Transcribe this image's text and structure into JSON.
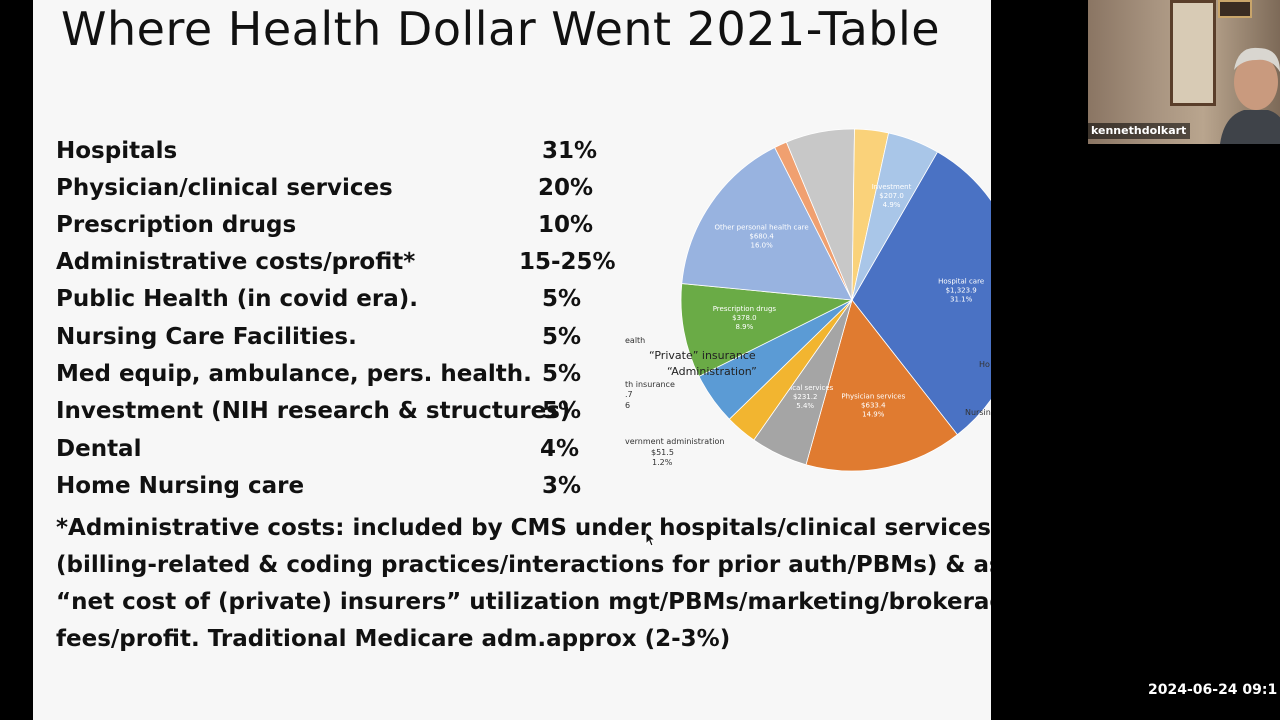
{
  "slide": {
    "title": "Where Health Dollar Went 2021-Table",
    "rows": [
      {
        "label": "Hospitals",
        "value": "31%"
      },
      {
        "label": "Physician/clinical services",
        "value": "20%"
      },
      {
        "label": "Prescription drugs",
        "value": "10%"
      },
      {
        "label": "Administrative costs/profit*",
        "value": "15-25%"
      },
      {
        "label": "Public Health (in covid era).",
        "value": "5%"
      },
      {
        "label": "Nursing Care Facilities.",
        "value": "5%"
      },
      {
        "label": "Med equip, ambulance, pers. health.",
        "value": "5%"
      },
      {
        "label": "Investment (NIH research & structures)",
        "value": "5%"
      },
      {
        "label": "Dental",
        "value": "4%"
      },
      {
        "label": "Home Nursing care",
        "value": "3%"
      }
    ],
    "footnote_lines": [
      "*Administrative costs: included by CMS under hospitals/clinical services",
      "(billing-related & coding practices/interactions for prior auth/PBMs) & as",
      "“net cost of (private) insurers” utilization mgt/PBMs/marketing/brokerage",
      "fees/profit.  Traditional Medicare adm.approx (2-3%)"
    ],
    "pie_overlay": {
      "insurance": "“Private” insurance",
      "administration": "“Administration”"
    },
    "pie_fragments": {
      "health": "ealth",
      "health_insurance": "th insurance",
      "seven": ".7",
      "six": "6",
      "gov_admin": "vernment administration",
      "gov_value": "$51.5",
      "gov_pct": "1.2%",
      "ho": "Ho",
      "nursing": "Nursing"
    }
  },
  "chart_data": {
    "type": "pie",
    "slices": [
      {
        "label": "Hospital care",
        "amount": "$1,323.9",
        "pct_label": "31.1%",
        "value": 31.1,
        "color": "#4a72c4"
      },
      {
        "label": "Physician services",
        "amount": "$633.4",
        "pct_label": "14.9%",
        "value": 14.9,
        "color": "#e07b30"
      },
      {
        "label": "Clinical services",
        "amount": "$231.2",
        "pct_label": "5.4%",
        "value": 5.4,
        "color": "#a5a5a5"
      },
      {
        "label": "",
        "amount": "",
        "pct_label": "",
        "value": 3.0,
        "color": "#f2b530"
      },
      {
        "label": "",
        "amount": "",
        "pct_label": "",
        "value": 4.9,
        "color": "#5b9bd5"
      },
      {
        "label": "Prescription drugs",
        "amount": "$378.0",
        "pct_label": "8.9%",
        "value": 8.9,
        "color": "#6aab46"
      },
      {
        "label": "Other personal health care",
        "amount": "$680.4",
        "pct_label": "16.0%",
        "value": 16.0,
        "color": "#98b3e0"
      },
      {
        "label": "",
        "amount": "",
        "pct_label": "",
        "value": 1.2,
        "color": "#f0a070"
      },
      {
        "label": "",
        "amount": "",
        "pct_label": "",
        "value": 6.5,
        "color": "#c8c8c8"
      },
      {
        "label": "",
        "amount": "",
        "pct_label": "",
        "value": 3.2,
        "color": "#fad27a"
      },
      {
        "label": "Investment",
        "amount": "$207.0",
        "pct_label": "4.9%",
        "value": 4.9,
        "color": "#a9c6e8"
      }
    ],
    "start_angle_deg": 300
  },
  "webcam": {
    "participant_name": "kennethdolkart"
  },
  "recording": {
    "timestamp": "2024-06-24 09:1"
  }
}
